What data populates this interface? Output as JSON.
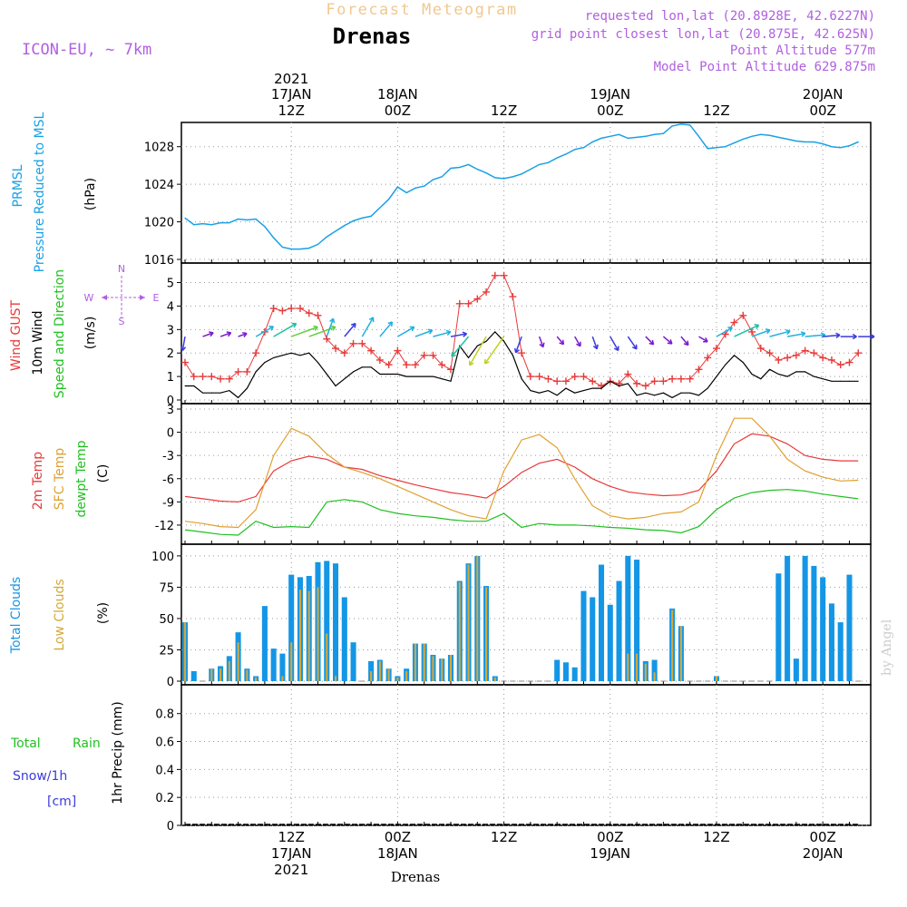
{
  "header": {
    "product": "Forecast Meteogram",
    "station": "Drenas",
    "model": "ICON-EU, ~ 7km",
    "info": [
      "requested lon,lat (20.8928E, 42.6227N)",
      "grid point closest lon,lat (20.875E, 42.625N)",
      "Point Altitude 577m",
      "Model Point Altitude 629.875m"
    ],
    "footer_station": "Drenas",
    "watermark": "by Angel"
  },
  "colors": {
    "pressure": "#1aa0e6",
    "gust": "#e83a3a",
    "wind": "#000000",
    "temp2m": "#e83a3a",
    "sfctemp": "#e0a030",
    "dewpt": "#20c020",
    "total_clouds": "#1496e6",
    "low_clouds": "#d4a838",
    "rain": "#20c020",
    "snow": "#3a3ae0",
    "compass": "#b060e0",
    "header_purple": "#b060e0",
    "header_orange": "#f0c890"
  },
  "time_axis": {
    "top_labels": [
      {
        "line1": "2021",
        "line2": "17JAN",
        "line3": "12Z",
        "hour": 12
      },
      {
        "line1": "",
        "line2": "18JAN",
        "line3": "00Z",
        "hour": 24
      },
      {
        "line1": "",
        "line2": "",
        "line3": "12Z",
        "hour": 36
      },
      {
        "line1": "",
        "line2": "19JAN",
        "line3": "00Z",
        "hour": 48
      },
      {
        "line1": "",
        "line2": "",
        "line3": "12Z",
        "hour": 60
      },
      {
        "line1": "",
        "line2": "20JAN",
        "line3": "00Z",
        "hour": 72
      }
    ],
    "bottom_labels": [
      {
        "line1": "12Z",
        "line2": "17JAN",
        "line3": "2021",
        "hour": 12
      },
      {
        "line1": "00Z",
        "line2": "18JAN",
        "line3": "",
        "hour": 24
      },
      {
        "line1": "12Z",
        "line2": "",
        "line3": "",
        "hour": 36
      },
      {
        "line1": "00Z",
        "line2": "19JAN",
        "line3": "",
        "hour": 48
      },
      {
        "line1": "12Z",
        "line2": "",
        "line3": "",
        "hour": 60
      },
      {
        "line1": "00Z",
        "line2": "20JAN",
        "line3": "",
        "hour": 72
      }
    ],
    "hour_range": [
      0,
      77
    ]
  },
  "compass": {
    "n": "N",
    "s": "S",
    "w": "W",
    "e": "E"
  },
  "panels": {
    "pressure": {
      "labels": [
        "PRMSL",
        "Pressure Reduced to MSL"
      ],
      "unit": "(hPa)",
      "ticks": [
        1016,
        1020,
        1024,
        1028
      ],
      "ylim": [
        1016,
        1030
      ]
    },
    "wind": {
      "labels": [
        "Wind GUST",
        "10m Wind",
        "Speed and Direction"
      ],
      "unit": "(m/s)",
      "ticks": [
        0,
        1,
        2,
        3,
        4,
        5
      ],
      "ylim": [
        0,
        5.6
      ]
    },
    "temp": {
      "labels": [
        "2m Temp",
        "SFC Temp",
        "dewpt Temp"
      ],
      "unit": "(C)",
      "ticks": [
        -12,
        -9,
        -6,
        -3,
        0,
        3
      ],
      "ylim": [
        -14,
        3
      ]
    },
    "clouds": {
      "labels": [
        "Total Clouds",
        "Low Clouds"
      ],
      "unit": "(%)",
      "ticks": [
        0,
        25,
        50,
        75,
        100
      ],
      "ylim": [
        0,
        105
      ]
    },
    "precip": {
      "labels": [
        "Total",
        "Rain",
        "Snow/1h",
        "[cm]"
      ],
      "unit": "1hr Precip (mm)",
      "ticks": [
        0,
        0.2,
        0.4,
        0.6,
        0.8
      ],
      "tick_labels": [
        "0",
        "0.2",
        "0.4",
        "0.6",
        "0.8"
      ],
      "ylim": [
        0,
        0.98
      ]
    }
  },
  "chart_data": [
    {
      "type": "line",
      "name": "PRMSL",
      "x": [
        0,
        1,
        2,
        3,
        4,
        5,
        6,
        7,
        8,
        9,
        10,
        11,
        12,
        13,
        14,
        15,
        16,
        17,
        18,
        19,
        20,
        21,
        22,
        23,
        24,
        25,
        26,
        27,
        28,
        29,
        30,
        31,
        32,
        33,
        34,
        35,
        36,
        37,
        38,
        39,
        40,
        41,
        42,
        43,
        44,
        45,
        46,
        47,
        48,
        49,
        50,
        51,
        52,
        53,
        54,
        55,
        56,
        57,
        58,
        59,
        60,
        61,
        62,
        63,
        64,
        65,
        66,
        67,
        68,
        69,
        70,
        71,
        72,
        73,
        74,
        75,
        76
      ],
      "y": [
        1020.4,
        1019.7,
        1019.8,
        1019.7,
        1019.9,
        1019.9,
        1020.3,
        1020.2,
        1020.3,
        1019.5,
        1018.3,
        1017.3,
        1017.1,
        1017.1,
        1017.2,
        1017.6,
        1018.4,
        1019.0,
        1019.6,
        1020.1,
        1020.4,
        1020.6,
        1021.5,
        1022.4,
        1023.7,
        1023.1,
        1023.6,
        1023.8,
        1024.5,
        1024.8,
        1025.7,
        1025.8,
        1026.1,
        1025.6,
        1025.2,
        1024.7,
        1024.6,
        1024.8,
        1025.1,
        1025.6,
        1026.1,
        1026.3,
        1026.8,
        1027.2,
        1027.7,
        1027.9,
        1028.5,
        1028.9,
        1029.1,
        1029.3,
        1028.9,
        1029.0,
        1029.1,
        1029.3,
        1029.4,
        1030.2,
        1030.4,
        1030.3,
        1029.1,
        1027.8,
        1027.9,
        1028.0,
        1028.4,
        1028.8,
        1029.1,
        1029.3,
        1029.2,
        1029.0,
        1028.8,
        1028.6,
        1028.5,
        1028.5,
        1028.3,
        1028.0,
        1027.9,
        1028.1,
        1028.5
      ],
      "ylim": [
        1016,
        1030
      ],
      "ylabel": "(hPa)"
    },
    {
      "type": "line",
      "name": "Wind GUST",
      "x": [
        0,
        1,
        2,
        3,
        4,
        5,
        6,
        7,
        8,
        9,
        10,
        11,
        12,
        13,
        14,
        15,
        16,
        17,
        18,
        19,
        20,
        21,
        22,
        23,
        24,
        25,
        26,
        27,
        28,
        29,
        30,
        31,
        32,
        33,
        34,
        35,
        36,
        37,
        38,
        39,
        40,
        41,
        42,
        43,
        44,
        45,
        46,
        47,
        48,
        49,
        50,
        51,
        52,
        53,
        54,
        55,
        56,
        57,
        58,
        59,
        60,
        61,
        62,
        63,
        64,
        65,
        66,
        67,
        68,
        69,
        70,
        71,
        72,
        73,
        74,
        75,
        76
      ],
      "y": [
        1.6,
        1.0,
        1.0,
        1.0,
        0.9,
        0.9,
        1.2,
        1.2,
        2.0,
        2.9,
        3.9,
        3.8,
        3.9,
        3.9,
        3.7,
        3.6,
        2.6,
        2.2,
        2.0,
        2.4,
        2.4,
        2.1,
        1.7,
        1.5,
        2.1,
        1.5,
        1.5,
        1.9,
        1.9,
        1.5,
        1.3,
        4.1,
        4.1,
        4.3,
        4.6,
        5.3,
        5.3,
        4.4,
        2.0,
        1.0,
        1.0,
        0.9,
        0.8,
        0.8,
        1.0,
        1.0,
        0.8,
        0.6,
        0.8,
        0.7,
        1.1,
        0.7,
        0.6,
        0.8,
        0.8,
        0.9,
        0.9,
        0.9,
        1.3,
        1.8,
        2.2,
        2.8,
        3.3,
        3.6,
        2.9,
        2.2,
        2.0,
        1.7,
        1.8,
        1.9,
        2.1,
        2.0,
        1.8,
        1.7,
        1.5,
        1.6,
        2.0
      ],
      "ylim": [
        0,
        5.6
      ],
      "ylabel": "(m/s)"
    },
    {
      "type": "line",
      "name": "10m Wind",
      "x": [
        0,
        1,
        2,
        3,
        4,
        5,
        6,
        7,
        8,
        9,
        10,
        11,
        12,
        13,
        14,
        15,
        16,
        17,
        18,
        19,
        20,
        21,
        22,
        23,
        24,
        25,
        26,
        27,
        28,
        29,
        30,
        31,
        32,
        33,
        34,
        35,
        36,
        37,
        38,
        39,
        40,
        41,
        42,
        43,
        44,
        45,
        46,
        47,
        48,
        49,
        50,
        51,
        52,
        53,
        54,
        55,
        56,
        57,
        58,
        59,
        60,
        61,
        62,
        63,
        64,
        65,
        66,
        67,
        68,
        69,
        70,
        71,
        72,
        73,
        74,
        75,
        76
      ],
      "y": [
        0.6,
        0.6,
        0.3,
        0.3,
        0.3,
        0.4,
        0.1,
        0.5,
        1.2,
        1.6,
        1.8,
        1.9,
        2.0,
        1.9,
        2.0,
        1.6,
        1.1,
        0.6,
        0.9,
        1.2,
        1.4,
        1.4,
        1.1,
        1.1,
        1.1,
        1.0,
        1.0,
        1.0,
        1.0,
        0.9,
        0.8,
        2.3,
        1.8,
        2.3,
        2.5,
        2.9,
        2.5,
        1.9,
        0.9,
        0.4,
        0.3,
        0.4,
        0.2,
        0.5,
        0.3,
        0.4,
        0.5,
        0.5,
        0.8,
        0.6,
        0.7,
        0.2,
        0.3,
        0.2,
        0.3,
        0.1,
        0.3,
        0.3,
        0.2,
        0.5,
        1.0,
        1.5,
        1.9,
        1.6,
        1.1,
        0.9,
        1.3,
        1.1,
        1.0,
        1.2,
        1.2,
        1.0,
        0.9,
        0.8,
        0.8,
        0.8,
        0.8
      ],
      "ylim": [
        0,
        5.6
      ],
      "ylabel": "(m/s)"
    },
    {
      "type": "line",
      "name": "2m Temp",
      "x": [
        0,
        2,
        4,
        6,
        8,
        10,
        12,
        14,
        16,
        18,
        20,
        22,
        24,
        26,
        28,
        30,
        32,
        34,
        36,
        38,
        40,
        42,
        44,
        46,
        48,
        50,
        52,
        54,
        56,
        58,
        60,
        62,
        64,
        66,
        68,
        70,
        72,
        74,
        76
      ],
      "y": [
        -8.3,
        -8.6,
        -8.9,
        -9.0,
        -8.3,
        -5.0,
        -3.7,
        -3.1,
        -3.5,
        -4.5,
        -4.8,
        -5.6,
        -6.2,
        -6.8,
        -7.3,
        -7.8,
        -8.1,
        -8.5,
        -7.0,
        -5.2,
        -4.0,
        -3.5,
        -4.5,
        -6.0,
        -7.0,
        -7.7,
        -8.0,
        -8.2,
        -8.1,
        -7.5,
        -5.0,
        -1.5,
        -0.2,
        -0.5,
        -1.5,
        -3.0,
        -3.5,
        -3.7,
        -3.7
      ],
      "ylim": [
        -14,
        3
      ],
      "ylabel": "(C)"
    },
    {
      "type": "line",
      "name": "SFC Temp",
      "x": [
        0,
        2,
        4,
        6,
        8,
        10,
        12,
        14,
        16,
        18,
        20,
        22,
        24,
        26,
        28,
        30,
        32,
        34,
        36,
        38,
        40,
        42,
        44,
        46,
        48,
        50,
        52,
        54,
        56,
        58,
        60,
        62,
        64,
        66,
        68,
        70,
        72,
        74,
        76
      ],
      "y": [
        -11.5,
        -11.8,
        -12.2,
        -12.3,
        -10.0,
        -3.0,
        0.5,
        -0.5,
        -2.8,
        -4.5,
        -5.2,
        -6.0,
        -7.0,
        -8.0,
        -9.0,
        -10.0,
        -10.8,
        -11.2,
        -5.0,
        -1.0,
        -0.3,
        -2.0,
        -6.0,
        -9.5,
        -10.8,
        -11.2,
        -11.0,
        -10.5,
        -10.3,
        -9.0,
        -3.0,
        1.8,
        1.8,
        -0.5,
        -3.5,
        -5.0,
        -5.8,
        -6.3,
        -6.2
      ],
      "ylim": [
        -14,
        3
      ],
      "ylabel": "(C)"
    },
    {
      "type": "line",
      "name": "dewpt Temp",
      "x": [
        0,
        2,
        4,
        6,
        8,
        10,
        12,
        14,
        16,
        18,
        20,
        22,
        24,
        26,
        28,
        30,
        32,
        34,
        36,
        38,
        40,
        42,
        44,
        46,
        48,
        50,
        52,
        54,
        56,
        58,
        60,
        62,
        64,
        66,
        68,
        70,
        72,
        74,
        76
      ],
      "y": [
        -12.6,
        -12.9,
        -13.2,
        -13.3,
        -11.5,
        -12.3,
        -12.2,
        -12.3,
        -9.0,
        -8.7,
        -9.0,
        -10.0,
        -10.5,
        -10.8,
        -11.0,
        -11.3,
        -11.5,
        -11.5,
        -10.5,
        -12.3,
        -11.8,
        -12.0,
        -12.0,
        -12.1,
        -12.3,
        -12.4,
        -12.6,
        -12.7,
        -13.0,
        -12.2,
        -10.0,
        -8.5,
        -7.8,
        -7.5,
        -7.4,
        -7.6,
        -8.0,
        -8.3,
        -8.6
      ],
      "ylim": [
        -14,
        3
      ],
      "ylabel": "(C)"
    },
    {
      "type": "bar",
      "name": "Total Clouds",
      "x": [
        0,
        1,
        2,
        3,
        4,
        5,
        6,
        7,
        8,
        9,
        10,
        11,
        12,
        13,
        14,
        15,
        16,
        17,
        18,
        19,
        20,
        21,
        22,
        23,
        24,
        25,
        26,
        27,
        28,
        29,
        30,
        31,
        32,
        33,
        34,
        35,
        36,
        37,
        38,
        39,
        40,
        41,
        42,
        43,
        44,
        45,
        46,
        47,
        48,
        49,
        50,
        51,
        52,
        53,
        54,
        55,
        56,
        57,
        58,
        59,
        60,
        61,
        62,
        63,
        64,
        65,
        66,
        67,
        68,
        69,
        70,
        71,
        72,
        73,
        74,
        75,
        76
      ],
      "y": [
        47,
        8,
        0,
        10,
        12,
        20,
        39,
        10,
        4,
        60,
        26,
        22,
        85,
        83,
        84,
        95,
        96,
        94,
        67,
        31,
        0,
        16,
        17,
        10,
        4,
        10,
        30,
        30,
        21,
        18,
        21,
        80,
        94,
        100,
        76,
        4,
        0,
        0,
        0,
        0,
        0,
        0,
        17,
        15,
        11,
        72,
        67,
        93,
        61,
        80,
        100,
        97,
        16,
        17,
        0,
        58,
        44,
        0,
        0,
        0,
        4,
        0,
        0,
        0,
        0,
        0,
        0,
        86,
        100,
        18,
        100,
        92,
        83,
        62,
        47,
        85,
        0
      ],
      "ylim": [
        0,
        105
      ],
      "ylabel": "(%)"
    },
    {
      "type": "bar",
      "name": "Low Clouds",
      "x": [
        0,
        1,
        2,
        3,
        4,
        5,
        6,
        7,
        8,
        9,
        10,
        11,
        12,
        13,
        14,
        15,
        16,
        17,
        18,
        19,
        20,
        21,
        22,
        23,
        24,
        25,
        26,
        27,
        28,
        29,
        30,
        31,
        32,
        33,
        34,
        35,
        36,
        37,
        38,
        39,
        40,
        41,
        42,
        43,
        44,
        45,
        46,
        47,
        48,
        49,
        50,
        51,
        52,
        53,
        54,
        55,
        56,
        57,
        58,
        59,
        60,
        61,
        62,
        63,
        64,
        65,
        66,
        67,
        68,
        69,
        70,
        71,
        72,
        73,
        74,
        75,
        76
      ],
      "y": [
        47,
        0,
        0,
        10,
        10,
        16,
        31,
        9,
        3,
        0,
        0,
        4,
        31,
        73,
        72,
        75,
        38,
        4,
        0,
        0,
        0,
        8,
        16,
        10,
        3,
        8,
        30,
        30,
        20,
        18,
        21,
        79,
        93,
        100,
        75,
        3,
        0,
        0,
        0,
        0,
        0,
        0,
        0,
        0,
        0,
        0,
        0,
        0,
        0,
        0,
        22,
        22,
        14,
        7,
        0,
        57,
        44,
        0,
        0,
        0,
        4,
        0,
        0,
        0,
        0,
        0,
        0,
        0,
        0,
        0,
        0,
        0,
        0,
        0,
        0,
        0,
        0
      ],
      "ylim": [
        0,
        105
      ],
      "ylabel": "(%)"
    },
    {
      "type": "line",
      "name": "1hr Precip",
      "x": [
        0,
        76
      ],
      "y": [
        0,
        0
      ],
      "ylim": [
        0,
        0.98
      ],
      "ylabel": "1hr Precip (mm)"
    }
  ],
  "wind_barbs": {
    "x": [
      0,
      2,
      4,
      6,
      8,
      10,
      12,
      14,
      16,
      18,
      20,
      22,
      24,
      26,
      28,
      30,
      32,
      34,
      36,
      38,
      40,
      42,
      44,
      46,
      48,
      50,
      52,
      54,
      56,
      58,
      60,
      62,
      64,
      66,
      68,
      70,
      72,
      74,
      76
    ],
    "speed": [
      0.6,
      0.3,
      0.3,
      0.1,
      1.2,
      1.8,
      2.0,
      2.0,
      1.1,
      0.9,
      1.4,
      1.1,
      1.1,
      1.0,
      1.0,
      0.8,
      1.8,
      2.5,
      2.5,
      0.9,
      0.3,
      0.2,
      0.3,
      0.5,
      0.8,
      0.7,
      0.3,
      0.3,
      0.3,
      0.2,
      1.0,
      1.9,
      1.1,
      1.3,
      1.0,
      1.2,
      0.9,
      0.8,
      0.8
    ],
    "dir_deg": [
      10,
      250,
      250,
      250,
      240,
      240,
      250,
      250,
      200,
      220,
      210,
      220,
      240,
      250,
      255,
      260,
      40,
      30,
      35,
      20,
      340,
      320,
      330,
      340,
      330,
      325,
      315,
      310,
      320,
      300,
      240,
      245,
      250,
      255,
      260,
      265,
      265,
      270,
      270
    ]
  }
}
